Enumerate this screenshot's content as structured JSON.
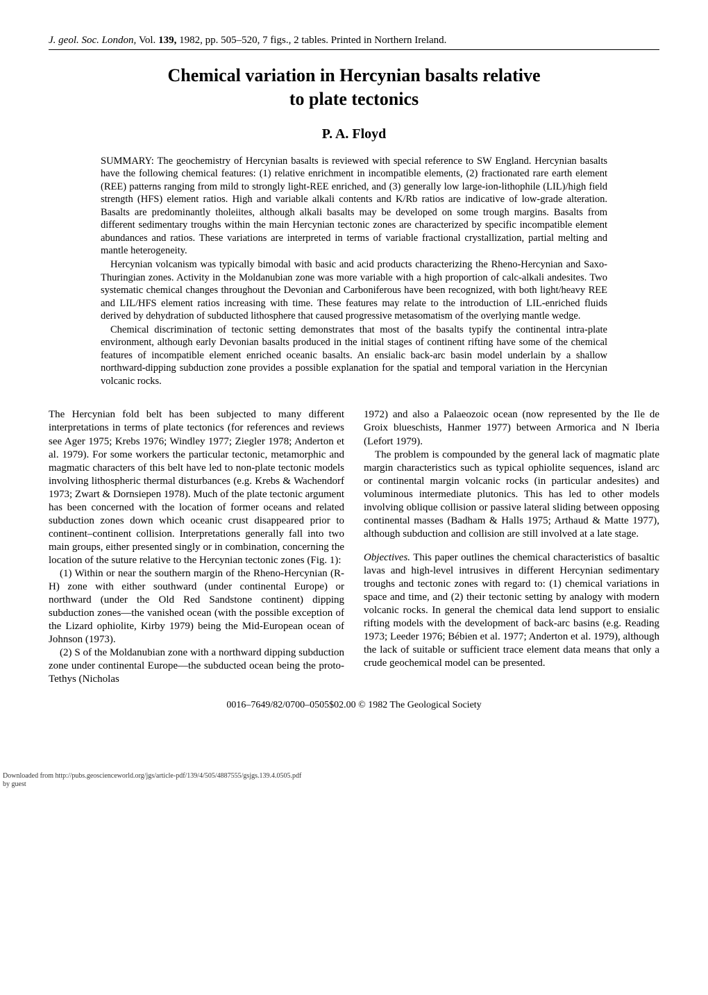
{
  "header": {
    "journal": "J. geol. Soc. London,",
    "vol_label": "Vol.",
    "vol": "139,",
    "rest": " 1982, pp. 505–520, 7 figs., 2 tables. Printed in Northern Ireland."
  },
  "title_line1": "Chemical variation in Hercynian basalts relative",
  "title_line2": "to plate tectonics",
  "author": "P. A. Floyd",
  "summary": {
    "label": "SUMMARY:",
    "p1": " The geochemistry of Hercynian basalts is reviewed with special reference to SW England. Hercynian basalts have the following chemical features: (1) relative enrichment in incompatible elements, (2) fractionated rare earth element (REE) patterns ranging from mild to strongly light-REE enriched, and (3) generally low large-ion-lithophile (LIL)/high field strength (HFS) element ratios. High and variable alkali contents and K/Rb ratios are indicative of low-grade alteration. Basalts are predominantly tholeiites, although alkali basalts may be developed on some trough margins. Basalts from different sedimentary troughs within the main Hercynian tectonic zones are characterized by specific incompatible element abundances and ratios. These variations are interpreted in terms of variable fractional crystallization, partial melting and mantle heterogeneity.",
    "p2": "Hercynian volcanism was typically bimodal with basic and acid products characterizing the Rheno-Hercynian and Saxo-Thuringian zones. Activity in the Moldanubian zone was more variable with a high proportion of calc-alkali andesites. Two systematic chemical changes throughout the Devonian and Carboniferous have been recognized, with both light/heavy REE and LIL/HFS element ratios increasing with time. These features may relate to the introduction of LIL-enriched fluids derived by dehydration of subducted lithosphere that caused progressive metasomatism of the overlying mantle wedge.",
    "p3": "Chemical discrimination of tectonic setting demonstrates that most of the basalts typify the continental intra-plate environment, although early Devonian basalts produced in the initial stages of continent rifting have some of the chemical features of incompatible element enriched oceanic basalts. An ensialic back-arc basin model underlain by a shallow northward-dipping subduction zone provides a possible explanation for the spatial and temporal variation in the Hercynian volcanic rocks."
  },
  "left_col": {
    "p1": "The Hercynian fold belt has been subjected to many different interpretations in terms of plate tectonics (for references and reviews see Ager 1975; Krebs 1976; Windley 1977; Ziegler 1978; Anderton et al. 1979). For some workers the particular tectonic, metamorphic and magmatic characters of this belt have led to non-plate tectonic models involving lithospheric thermal disturbances (e.g. Krebs & Wachendorf 1973; Zwart & Dornsiepen 1978). Much of the plate tectonic argument has been concerned with the location of former oceans and related subduction zones down which oceanic crust disappeared prior to continent–continent collision. Interpretations generally fall into two main groups, either presented singly or in combination, concerning the location of the suture relative to the Hercynian tectonic zones (Fig. 1):",
    "p2": "(1) Within or near the southern margin of the Rheno-Hercynian (R-H) zone with either southward (under continental Europe) or northward (under the Old Red Sandstone continent) dipping subduction zones—the vanished ocean (with the possible exception of the Lizard ophiolite, Kirby 1979) being the Mid-European ocean of Johnson (1973).",
    "p3": "(2) S of the Moldanubian zone with a northward dipping subduction zone under continental Europe—the subducted ocean being the proto-Tethys (Nicholas"
  },
  "right_col": {
    "p1": "1972) and also a Palaeozoic ocean (now represented by the Ile de Groix blueschists, Hanmer 1977) between Armorica and N Iberia (Lefort 1979).",
    "p2": "The problem is compounded by the general lack of magmatic plate margin characteristics such as typical ophiolite sequences, island arc or continental margin volcanic rocks (in particular andesites) and voluminous intermediate plutonics. This has led to other models involving oblique collision or passive lateral sliding between opposing continental masses (Badham & Halls 1975; Arthaud & Matte 1977), although subduction and collision are still involved at a late stage.",
    "obj_label": "Objectives.",
    "p3": " This paper outlines the chemical characteristics of basaltic lavas and high-level intrusives in different Hercynian sedimentary troughs and tectonic zones with regard to: (1) chemical variations in space and time, and (2) their tectonic setting by analogy with modern volcanic rocks. In general the chemical data lend support to ensialic rifting models with the development of back-arc basins (e.g. Reading 1973; Leeder 1976; Bébien et al. 1977; Anderton et al. 1979), although the lack of suitable or sufficient trace element data means that only a crude geochemical model can be presented."
  },
  "copyright": "0016–7649/82/0700–0505$02.00 © 1982 The Geological Society",
  "footer": {
    "line1": "Downloaded from http://pubs.geoscienceworld.org/jgs/article-pdf/139/4/505/4887555/gsjgs.139.4.0505.pdf",
    "line2": "by guest"
  }
}
